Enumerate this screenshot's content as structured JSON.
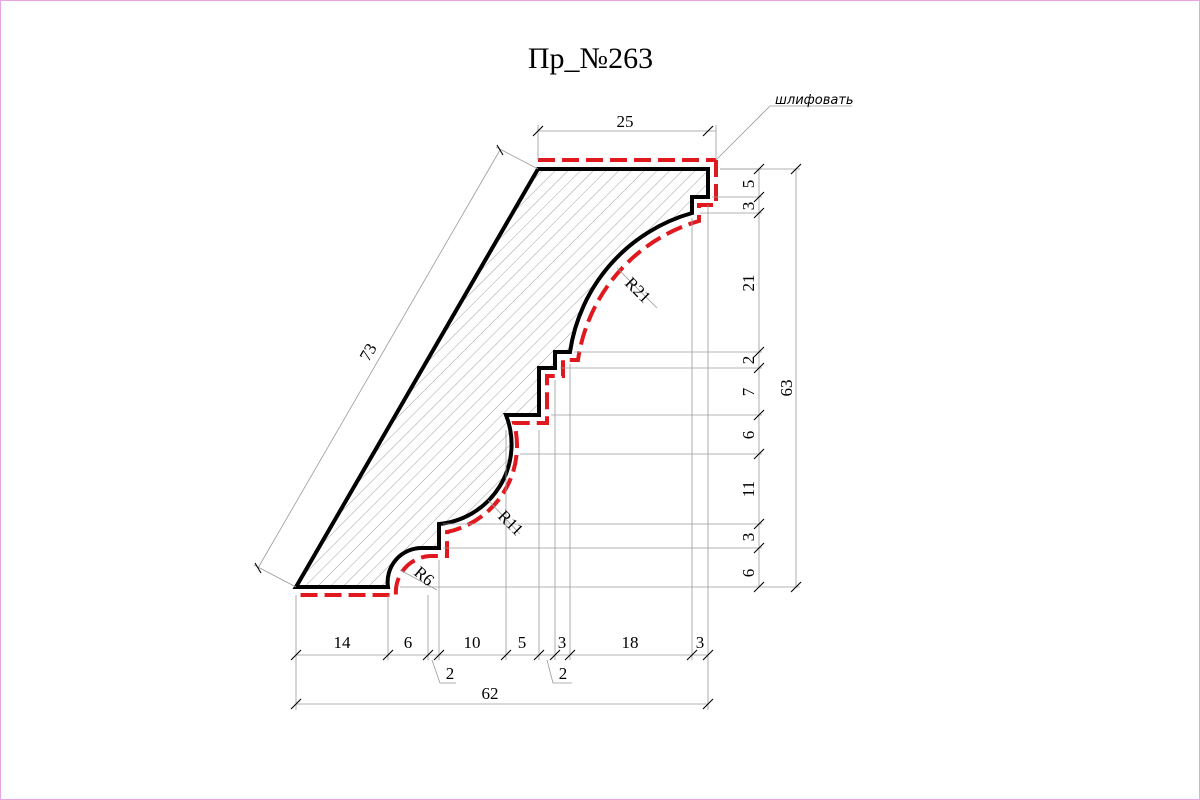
{
  "title": "Пр_№263",
  "note": "шлифовать",
  "radii": {
    "r21": "R21",
    "r11": "R11",
    "r6": "R6"
  },
  "dims_top": {
    "width25": "25",
    "slant73": "73"
  },
  "dims_right": [
    "5",
    "3",
    "21",
    "2",
    "7",
    "6",
    "11",
    "3",
    "6"
  ],
  "dims_right_total": "63",
  "dims_bottom": {
    "d14": "14",
    "d6": "6",
    "d10": "10",
    "d5": "5",
    "d3a": "3",
    "d18": "18",
    "d3b": "3",
    "d2a": "2",
    "d2b": "2",
    "total": "62"
  },
  "colors": {
    "outline": "#000000",
    "sanding": "#e0191f",
    "sheet_border": "#e6a6e6"
  }
}
